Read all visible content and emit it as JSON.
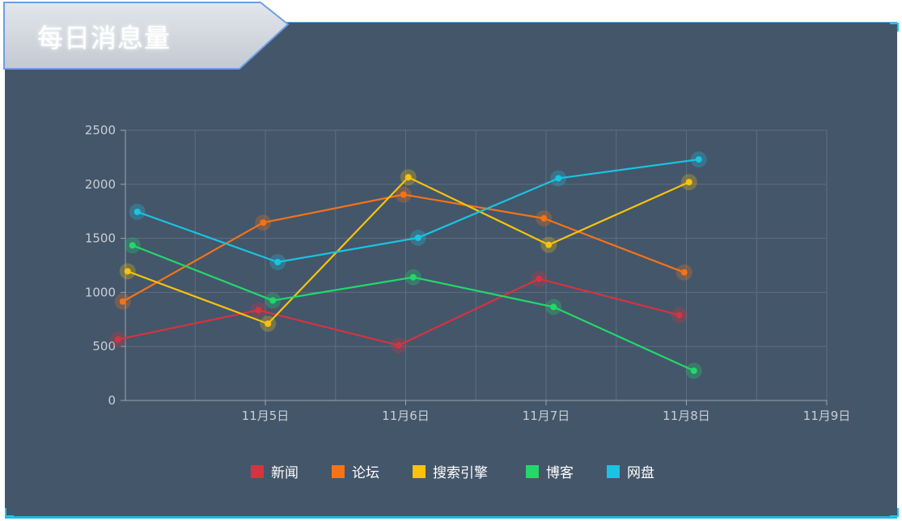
{
  "panel": {
    "title": "每日消息量"
  },
  "colors": {
    "panel_bg": "#44566a",
    "title_tab": "#cfd4db",
    "accent_border": "#19c8f0",
    "grid": "#5d6d7e"
  },
  "chart_data": {
    "type": "line",
    "title": "",
    "xlabel": "",
    "ylabel": "",
    "xlim": [
      "11月4日",
      "11月9日"
    ],
    "ylim": [
      0,
      2500
    ],
    "x_ticks": [
      "11月5日",
      "11月6日",
      "11月7日",
      "11月8日",
      "11月9日"
    ],
    "y_ticks": [
      0,
      500,
      1000,
      1500,
      2000,
      2500
    ],
    "grid": true,
    "legend_position": "bottom",
    "series": [
      {
        "name": "新闻",
        "color": "#d53340",
        "points": [
          [
            "11月4日",
            565
          ],
          [
            "11月5日",
            835
          ],
          [
            "11月6日",
            510
          ],
          [
            "11月7日",
            1125
          ],
          [
            "11月8日",
            790
          ]
        ]
      },
      {
        "name": "论坛",
        "color": "#f57316",
        "points": [
          [
            "11月4日",
            915
          ],
          [
            "11月5日",
            1645
          ],
          [
            "11月6日",
            1905
          ],
          [
            "11月7日",
            1685
          ],
          [
            "11月8日",
            1185
          ]
        ]
      },
      {
        "name": "搜索引擎",
        "color": "#f7c30b",
        "points": [
          [
            "11月4日",
            1195
          ],
          [
            "11月5日",
            710
          ],
          [
            "11月6日",
            2065
          ],
          [
            "11月7日",
            1440
          ],
          [
            "11月8日",
            2020
          ]
        ]
      },
      {
        "name": "博客",
        "color": "#22d86a",
        "points": [
          [
            "11月4日",
            1435
          ],
          [
            "11月5日",
            925
          ],
          [
            "11月6日",
            1140
          ],
          [
            "11月7日",
            865
          ],
          [
            "11月8日",
            275
          ]
        ]
      },
      {
        "name": "网盘",
        "color": "#18c4e2",
        "points": [
          [
            "11月4日",
            1745
          ],
          [
            "11月5日",
            1280
          ],
          [
            "11月6日",
            1505
          ],
          [
            "11月7日",
            2055
          ],
          [
            "11月8日",
            2230
          ]
        ]
      }
    ]
  }
}
